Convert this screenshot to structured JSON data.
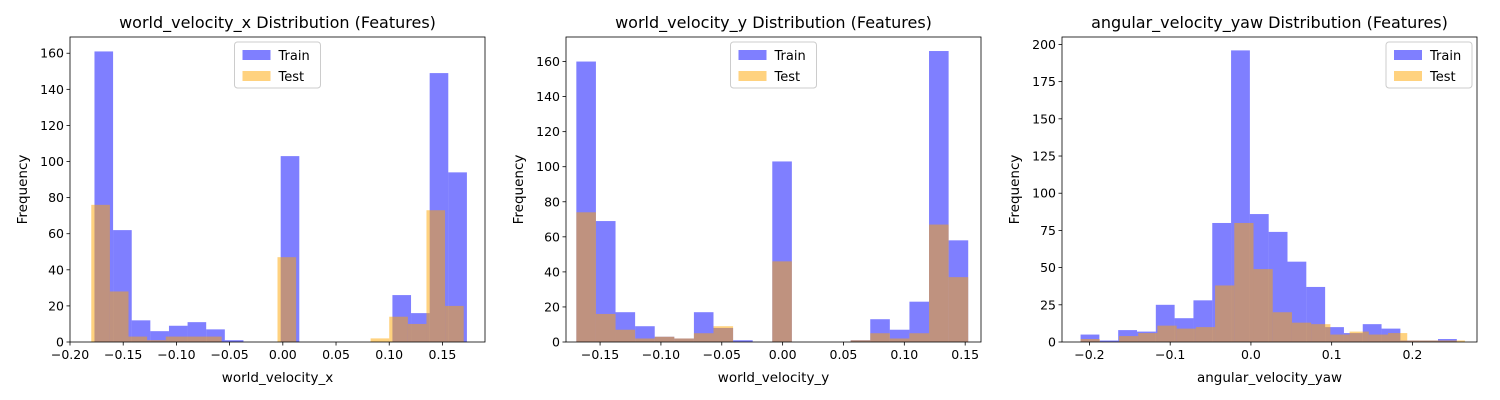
{
  "figure": {
    "legend": {
      "train_label": "Train",
      "test_label": "Test"
    }
  },
  "colors": {
    "train": "#0000ff",
    "test": "#ffa500",
    "opacity": 0.5
  },
  "chart_data": [
    {
      "type": "bar",
      "title": "world_velocity_x Distribution (Features)",
      "xlabel": "world_velocity_x",
      "ylabel": "Frequency",
      "xlim": [
        -0.2,
        0.19
      ],
      "ylim": [
        0,
        169
      ],
      "xticks": [
        -0.2,
        -0.15,
        -0.1,
        -0.05,
        0.0,
        0.05,
        0.1,
        0.15
      ],
      "xtick_labels": [
        "−0.20",
        "−0.15",
        "−0.10",
        "−0.05",
        "0.00",
        "0.05",
        "0.10",
        "0.15"
      ],
      "yticks": [
        0,
        20,
        40,
        60,
        80,
        100,
        120,
        140,
        160
      ],
      "ytick_labels": [
        "0",
        "20",
        "40",
        "60",
        "80",
        "100",
        "120",
        "140",
        "160"
      ],
      "legend_loc": "upper center",
      "series": [
        {
          "name": "Train",
          "bins": [
            -0.177,
            -0.1595,
            -0.142,
            -0.1245,
            -0.107,
            -0.0895,
            -0.072,
            -0.0545,
            -0.037,
            -0.0195,
            -0.002,
            0.0155,
            0.033,
            0.0505,
            0.068,
            0.0855,
            0.103,
            0.1205,
            0.138,
            0.1555,
            0.173
          ],
          "values": [
            161,
            62,
            12,
            6,
            9,
            11,
            7,
            1,
            0,
            0,
            103,
            0,
            0,
            0,
            0,
            0,
            26,
            16,
            149,
            94
          ]
        },
        {
          "name": "Test",
          "bins": [
            -0.18,
            -0.1625,
            -0.145,
            -0.1275,
            -0.11,
            -0.0925,
            -0.075,
            -0.0575,
            -0.04,
            -0.0225,
            -0.005,
            0.0125,
            0.03,
            0.0475,
            0.065,
            0.0825,
            0.1,
            0.1175,
            0.135,
            0.1525,
            0.17
          ],
          "values": [
            76,
            28,
            3,
            1,
            3,
            3,
            3,
            0,
            0,
            0,
            47,
            0,
            0,
            0,
            0,
            2,
            14,
            10,
            73,
            20
          ]
        }
      ]
    },
    {
      "type": "bar",
      "title": "world_velocity_y Distribution (Features)",
      "xlabel": "world_velocity_y",
      "ylabel": "Frequency",
      "xlim": [
        -0.178,
        0.163
      ],
      "ylim": [
        0,
        174
      ],
      "xticks": [
        -0.15,
        -0.1,
        -0.05,
        0.0,
        0.05,
        0.1,
        0.15
      ],
      "xtick_labels": [
        "−0.15",
        "−0.10",
        "−0.05",
        "0.00",
        "0.05",
        "0.10",
        "0.15"
      ],
      "yticks": [
        0,
        20,
        40,
        60,
        80,
        100,
        120,
        140,
        160
      ],
      "ytick_labels": [
        "0",
        "20",
        "40",
        "60",
        "80",
        "100",
        "120",
        "140",
        "160"
      ],
      "legend_loc": "upper center",
      "series": [
        {
          "name": "Train",
          "bins": [
            -0.1695,
            -0.1534,
            -0.1373,
            -0.1212,
            -0.1051,
            -0.089,
            -0.0729,
            -0.0568,
            -0.0407,
            -0.0246,
            -0.0085,
            0.0076,
            0.0237,
            0.0398,
            0.0559,
            0.072,
            0.0881,
            0.1042,
            0.1203,
            0.1364,
            0.1525
          ],
          "values": [
            160,
            69,
            17,
            9,
            3,
            2,
            17,
            8,
            1,
            0,
            103,
            0,
            0,
            0,
            1,
            13,
            7,
            23,
            166,
            58
          ]
        },
        {
          "name": "Test",
          "bins": [
            -0.1695,
            -0.1534,
            -0.1373,
            -0.1212,
            -0.1051,
            -0.089,
            -0.0729,
            -0.0568,
            -0.0407,
            -0.0246,
            -0.0085,
            0.0076,
            0.0237,
            0.0398,
            0.0559,
            0.072,
            0.0881,
            0.1042,
            0.1203,
            0.1364,
            0.1525
          ],
          "values": [
            74,
            16,
            7,
            2,
            3,
            2,
            5,
            9,
            0,
            0,
            46,
            0,
            0,
            0,
            1,
            5,
            2,
            5,
            67,
            37
          ]
        }
      ]
    },
    {
      "type": "bar",
      "title": "angular_velocity_yaw Distribution (Features)",
      "xlabel": "angular_velocity_yaw",
      "ylabel": "Frequency",
      "xlim": [
        -0.234,
        0.28
      ],
      "ylim": [
        0,
        205
      ],
      "xticks": [
        -0.2,
        -0.1,
        0.0,
        0.1,
        0.2
      ],
      "xtick_labels": [
        "−0.2",
        "−0.1",
        "0.0",
        "0.1",
        "0.2"
      ],
      "yticks": [
        0,
        25,
        50,
        75,
        100,
        125,
        150,
        175,
        200
      ],
      "ytick_labels": [
        "0",
        "25",
        "50",
        "75",
        "100",
        "125",
        "150",
        "175",
        "200"
      ],
      "legend_loc": "upper right",
      "series": [
        {
          "name": "Train",
          "bins": [
            -0.211,
            -0.1877,
            -0.1644,
            -0.1411,
            -0.1178,
            -0.0945,
            -0.0712,
            -0.0479,
            -0.0246,
            -0.0013,
            0.022,
            0.0453,
            0.0686,
            0.0919,
            0.1152,
            0.1385,
            0.1618,
            0.1851,
            0.2084,
            0.2317,
            0.255
          ],
          "values": [
            5,
            1,
            8,
            7,
            25,
            16,
            28,
            80,
            196,
            86,
            74,
            54,
            37,
            10,
            6,
            12,
            9,
            1,
            1,
            2
          ]
        },
        {
          "name": "Test",
          "bins": [
            -0.211,
            -0.1872,
            -0.1634,
            -0.1396,
            -0.1158,
            -0.092,
            -0.0682,
            -0.0444,
            -0.0206,
            0.0032,
            0.027,
            0.0508,
            0.0746,
            0.0984,
            0.1222,
            0.146,
            0.1698,
            0.1936,
            0.2174,
            0.2412,
            0.265
          ],
          "values": [
            2,
            0,
            4,
            6,
            11,
            9,
            10,
            38,
            80,
            49,
            20,
            13,
            12,
            5,
            7,
            5,
            6,
            1,
            1,
            1
          ]
        }
      ]
    }
  ]
}
